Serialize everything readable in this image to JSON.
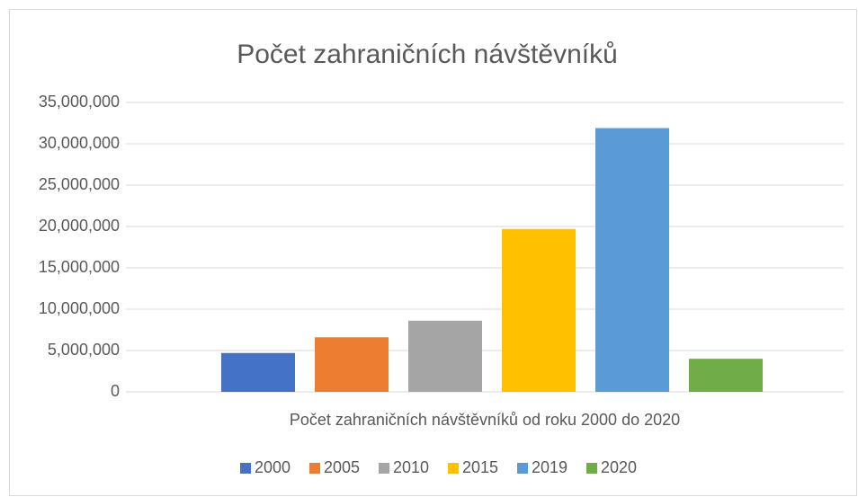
{
  "chart_data": {
    "type": "bar",
    "title": "Počet zahraničních návštěvníků",
    "categories": [
      "Počet zahraničních návštěvníků od roku 2000 do 2020"
    ],
    "series": [
      {
        "name": "2000",
        "color": "#4472c4",
        "values": [
          4700000
        ]
      },
      {
        "name": "2005",
        "color": "#ed7d31",
        "values": [
          6600000
        ]
      },
      {
        "name": "2010",
        "color": "#a5a5a5",
        "values": [
          8600000
        ]
      },
      {
        "name": "2015",
        "color": "#ffc000",
        "values": [
          19700000
        ]
      },
      {
        "name": "2019",
        "color": "#5b9bd5",
        "values": [
          31900000
        ]
      },
      {
        "name": "2020",
        "color": "#70ad47",
        "values": [
          4000000
        ]
      }
    ],
    "ylim": [
      0,
      35000000
    ],
    "yticks": [
      0,
      {
        "value": 5000000,
        "label": "5,000,000"
      },
      {
        "value": 10000000,
        "label": "10,000,000"
      },
      {
        "value": 15000000,
        "label": "15,000,000"
      },
      {
        "value": 20000000,
        "label": "20,000,000"
      },
      {
        "value": 25000000,
        "label": "25,000,000"
      },
      {
        "value": 30000000,
        "label": "30,000,000"
      },
      {
        "value": 35000000,
        "label": "35,000,000"
      }
    ],
    "grid": true,
    "legend": "bottom"
  }
}
